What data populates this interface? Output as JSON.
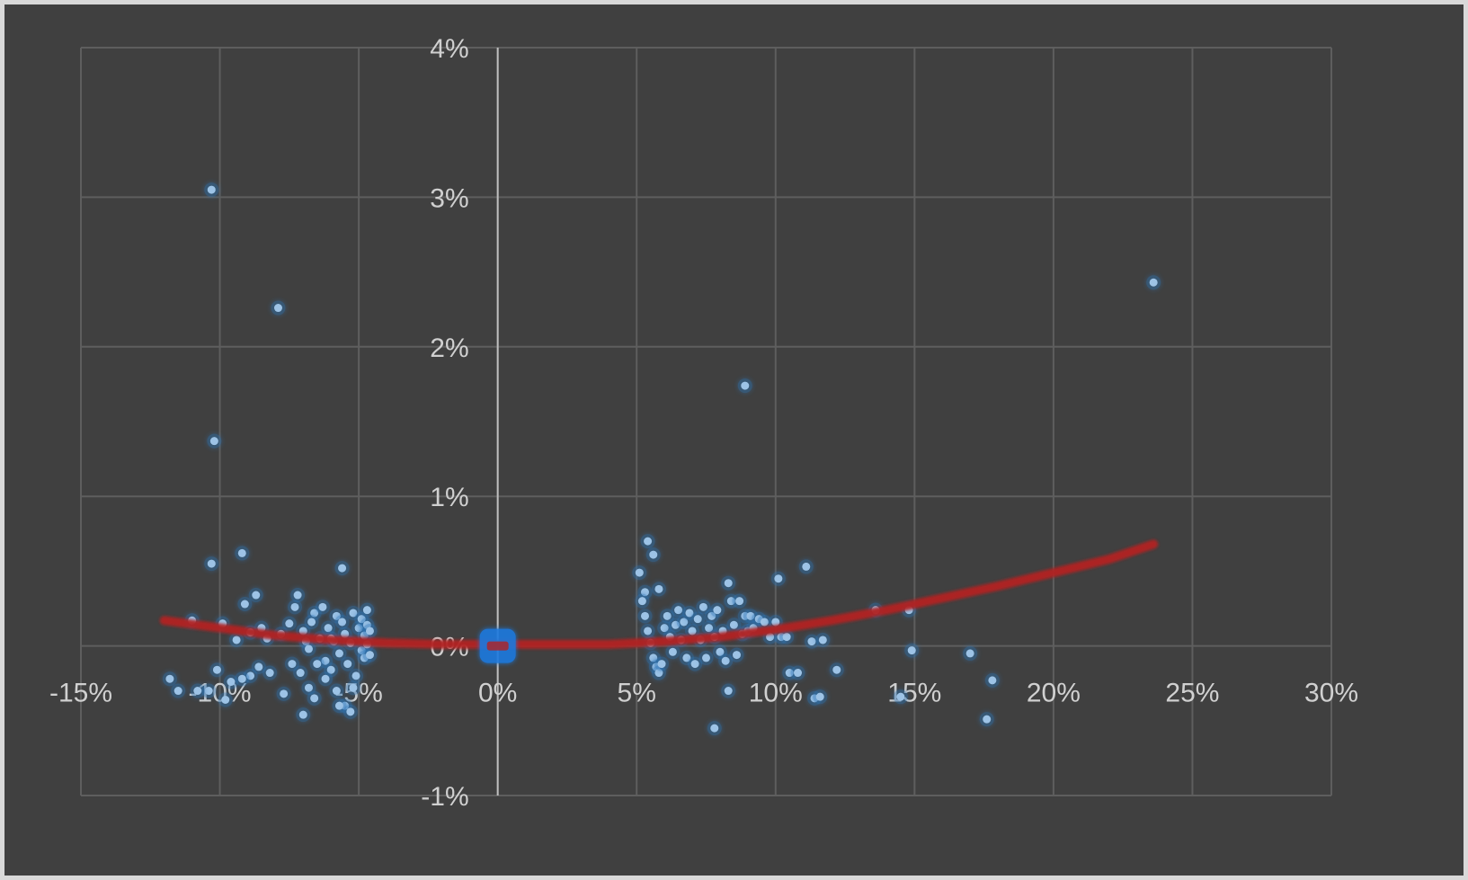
{
  "chart_data": {
    "type": "scatter",
    "title": "",
    "xlabel": "",
    "ylabel": "",
    "xlim": [
      -0.15,
      0.3
    ],
    "ylim": [
      -0.01,
      0.04
    ],
    "x_ticks": [
      -0.15,
      -0.1,
      -0.05,
      0.0,
      0.05,
      0.1,
      0.15,
      0.2,
      0.25,
      0.3
    ],
    "x_tick_labels": [
      "-15%",
      "-10%",
      "-5%",
      "0%",
      "5%",
      "10%",
      "15%",
      "20%",
      "25%",
      "30%"
    ],
    "y_ticks": [
      -0.01,
      0.0,
      0.01,
      0.02,
      0.03,
      0.04
    ],
    "y_tick_labels": [
      "-1%",
      "0%",
      "1%",
      "2%",
      "3%",
      "4%"
    ],
    "grid": true,
    "legend": "none",
    "colors": {
      "background": "#404040",
      "grid": "#5e5e5e",
      "axis": "#bfbfbf",
      "points": "#9dc3e6",
      "glow": "#2e75b6",
      "trendline": "#b22222",
      "origin_marker": "#1f7ae0"
    },
    "series": [
      {
        "values": [
          [
            -0.103,
            0.0305
          ],
          [
            -0.079,
            0.0226
          ],
          [
            -0.102,
            0.0137
          ],
          [
            -0.103,
            0.0055
          ],
          [
            -0.092,
            0.0062
          ],
          [
            -0.056,
            0.0052
          ],
          [
            -0.11,
            0.0017
          ],
          [
            -0.099,
            0.0015
          ],
          [
            -0.094,
            0.0004
          ],
          [
            -0.089,
            0.0009
          ],
          [
            -0.087,
            0.0034
          ],
          [
            -0.091,
            0.0028
          ],
          [
            -0.085,
            0.0012
          ],
          [
            -0.083,
            0.0005
          ],
          [
            -0.078,
            0.0008
          ],
          [
            -0.075,
            0.0015
          ],
          [
            -0.073,
            0.0026
          ],
          [
            -0.072,
            0.0034
          ],
          [
            -0.07,
            0.001
          ],
          [
            -0.069,
            0.0003
          ],
          [
            -0.068,
            -0.0002
          ],
          [
            -0.066,
            0.0022
          ],
          [
            -0.064,
            0.0005
          ],
          [
            -0.063,
            0.0026
          ],
          [
            -0.062,
            -0.001
          ],
          [
            -0.061,
            0.0012
          ],
          [
            -0.06,
            -0.0016
          ],
          [
            -0.059,
            0.0003
          ],
          [
            -0.058,
            0.002
          ],
          [
            -0.057,
            -0.0005
          ],
          [
            -0.056,
            0.0016
          ],
          [
            -0.055,
            0.0008
          ],
          [
            -0.054,
            -0.0012
          ],
          [
            -0.053,
            0.0002
          ],
          [
            -0.052,
            0.0022
          ],
          [
            -0.051,
            -0.002
          ],
          [
            -0.05,
            0.0012
          ],
          [
            -0.049,
            -0.0003
          ],
          [
            -0.049,
            0.0018
          ],
          [
            -0.048,
            0.0007
          ],
          [
            -0.048,
            -0.0008
          ],
          [
            -0.047,
            0.0014
          ],
          [
            -0.047,
            0.0001
          ],
          [
            -0.047,
            0.0024
          ],
          [
            -0.046,
            -0.0006
          ],
          [
            -0.046,
            0.001
          ],
          [
            -0.052,
            -0.0028
          ],
          [
            -0.055,
            -0.004
          ],
          [
            -0.058,
            -0.003
          ],
          [
            -0.062,
            -0.0022
          ],
          [
            -0.065,
            -0.0012
          ],
          [
            -0.068,
            -0.0028
          ],
          [
            -0.07,
            -0.0046
          ],
          [
            -0.074,
            -0.0012
          ],
          [
            -0.077,
            -0.0032
          ],
          [
            -0.082,
            -0.0018
          ],
          [
            -0.086,
            -0.0014
          ],
          [
            -0.089,
            -0.002
          ],
          [
            -0.092,
            -0.0022
          ],
          [
            -0.096,
            -0.0024
          ],
          [
            -0.098,
            -0.0036
          ],
          [
            -0.101,
            -0.0016
          ],
          [
            -0.104,
            -0.003
          ],
          [
            -0.108,
            -0.003
          ],
          [
            -0.115,
            -0.003
          ],
          [
            -0.118,
            -0.0022
          ],
          [
            -0.067,
            0.0016
          ],
          [
            -0.071,
            -0.0018
          ],
          [
            -0.066,
            -0.0035
          ],
          [
            -0.06,
            0.0005
          ],
          [
            -0.057,
            -0.004
          ],
          [
            -0.053,
            -0.0044
          ],
          [
            0.051,
            0.0049
          ],
          [
            0.053,
            0.0036
          ],
          [
            0.054,
            0.007
          ],
          [
            0.056,
            0.0061
          ],
          [
            0.058,
            0.0038
          ],
          [
            0.052,
            0.003
          ],
          [
            0.053,
            0.002
          ],
          [
            0.054,
            0.001
          ],
          [
            0.055,
            0.0002
          ],
          [
            0.056,
            -0.0008
          ],
          [
            0.057,
            -0.0014
          ],
          [
            0.058,
            -0.0018
          ],
          [
            0.059,
            -0.0012
          ],
          [
            0.06,
            0.0012
          ],
          [
            0.061,
            0.002
          ],
          [
            0.062,
            0.0006
          ],
          [
            0.063,
            -0.0004
          ],
          [
            0.064,
            0.0014
          ],
          [
            0.065,
            0.0024
          ],
          [
            0.066,
            0.0004
          ],
          [
            0.067,
            0.0016
          ],
          [
            0.068,
            -0.0008
          ],
          [
            0.069,
            0.0022
          ],
          [
            0.07,
            0.001
          ],
          [
            0.071,
            -0.0012
          ],
          [
            0.072,
            0.0018
          ],
          [
            0.073,
            0.0004
          ],
          [
            0.074,
            0.0026
          ],
          [
            0.075,
            -0.0008
          ],
          [
            0.076,
            0.0012
          ],
          [
            0.077,
            0.002
          ],
          [
            0.078,
            0.0006
          ],
          [
            0.079,
            0.0024
          ],
          [
            0.08,
            -0.0004
          ],
          [
            0.081,
            0.001
          ],
          [
            0.082,
            -0.001
          ],
          [
            0.083,
            0.0042
          ],
          [
            0.084,
            0.003
          ],
          [
            0.085,
            0.0014
          ],
          [
            0.086,
            -0.0006
          ],
          [
            0.087,
            0.003
          ],
          [
            0.088,
            0.0008
          ],
          [
            0.089,
            0.002
          ],
          [
            0.091,
            0.002
          ],
          [
            0.09,
            0.001
          ],
          [
            0.092,
            0.0012
          ],
          [
            0.094,
            0.0018
          ],
          [
            0.096,
            0.0016
          ],
          [
            0.098,
            0.0006
          ],
          [
            0.1,
            0.0016
          ],
          [
            0.101,
            0.0045
          ],
          [
            0.102,
            0.0006
          ],
          [
            0.104,
            0.0006
          ],
          [
            0.111,
            0.0053
          ],
          [
            0.113,
            0.0003
          ],
          [
            0.117,
            0.0004
          ],
          [
            0.089,
            0.0174
          ],
          [
            0.083,
            -0.003
          ],
          [
            0.078,
            -0.0055
          ],
          [
            0.105,
            -0.0018
          ],
          [
            0.108,
            -0.0018
          ],
          [
            0.114,
            -0.0035
          ],
          [
            0.116,
            -0.0034
          ],
          [
            0.122,
            -0.0016
          ],
          [
            0.136,
            0.0024
          ],
          [
            0.145,
            -0.0034
          ],
          [
            0.148,
            0.0024
          ],
          [
            0.149,
            -0.0003
          ],
          [
            0.17,
            -0.0005
          ],
          [
            0.176,
            -0.0049
          ],
          [
            0.178,
            -0.0023
          ],
          [
            0.236,
            0.0243
          ]
        ]
      }
    ],
    "origin_marker": {
      "x": 0.0,
      "y": 0.0
    },
    "trendline": {
      "type": "polynomial",
      "x": [
        -0.12,
        -0.1,
        -0.08,
        -0.06,
        -0.04,
        -0.02,
        0.0,
        0.02,
        0.04,
        0.06,
        0.08,
        0.1,
        0.12,
        0.14,
        0.16,
        0.18,
        0.2,
        0.22,
        0.236
      ],
      "y": [
        0.0017,
        0.0012,
        0.0007,
        0.0004,
        0.0002,
        0.0001,
        0.0001,
        0.0001,
        0.0001,
        0.0003,
        0.0006,
        0.0011,
        0.0017,
        0.0024,
        0.0032,
        0.004,
        0.0049,
        0.0058,
        0.0068
      ]
    }
  }
}
